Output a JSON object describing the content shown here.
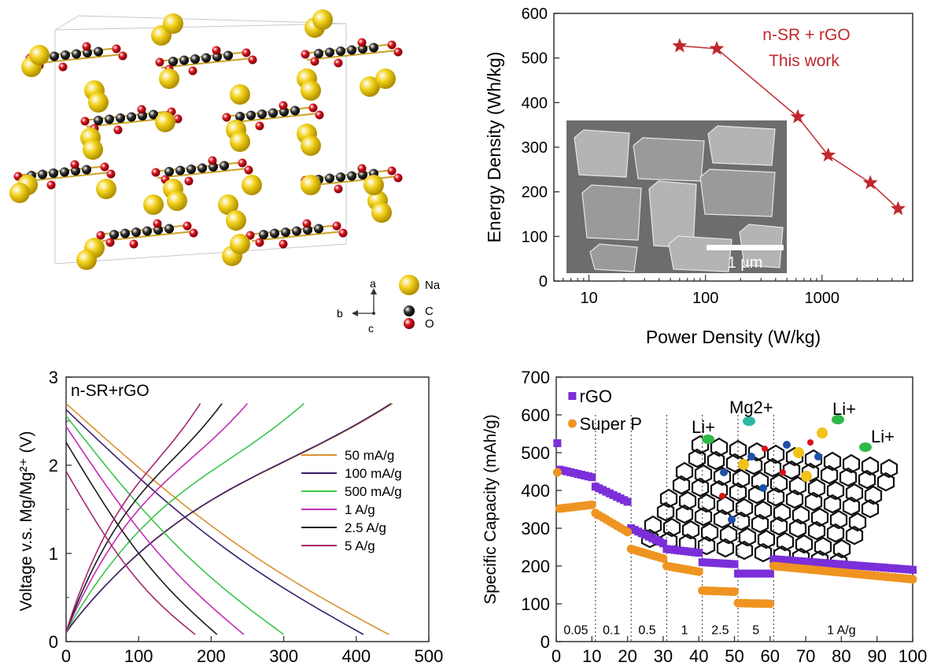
{
  "crystal": {
    "axes": {
      "a": "a",
      "b": "b",
      "c": "c"
    },
    "legend": [
      {
        "label": "Na",
        "color": "#f2d21b"
      },
      {
        "label": "C",
        "color": "#333333"
      },
      {
        "label": "O",
        "color": "#d9121a"
      }
    ]
  },
  "inset_sem": {
    "scale_label": "1 µm"
  },
  "mg_scheme": {
    "ions": [
      "Mg2+",
      "Li+",
      "Li+",
      "Li+"
    ]
  },
  "chart_data": [
    {
      "type": "scatter",
      "xlabel": "Power Density (W/kg)",
      "ylabel": "Energy Density (Wh/kg)",
      "xscale": "log",
      "xlim": [
        5,
        6000
      ],
      "ylim": [
        0,
        600
      ],
      "xticks": [
        10,
        100,
        1000
      ],
      "yticks": [
        0,
        100,
        200,
        300,
        400,
        500,
        600
      ],
      "annotation": [
        "n-SR + rGO",
        "This work"
      ],
      "series": [
        {
          "name": "n-SR + rGO",
          "color": "#c1272d",
          "marker": "star",
          "x": [
            60,
            125,
            620,
            1130,
            2600,
            4500
          ],
          "y": [
            527,
            521,
            368,
            282,
            220,
            162
          ]
        }
      ]
    },
    {
      "type": "line",
      "label": "n-SR+rGO",
      "xlabel": "",
      "ylabel": "Voltage v.s. Mg/Mg²⁺ (V)",
      "xlim": [
        0,
        500
      ],
      "ylim": [
        0,
        3
      ],
      "xticks": [
        0,
        100,
        200,
        300,
        400,
        500
      ],
      "yticks": [
        0,
        1,
        2,
        3
      ],
      "legend_position": "right",
      "series": [
        {
          "name": "50 mA/g",
          "color": "#d89030",
          "charge_end": 450,
          "discharge_end": 445,
          "start_v": 2.62
        },
        {
          "name": "100 mA/g",
          "color": "#3b1e6e",
          "charge_end": 448,
          "discharge_end": 410,
          "start_v": 2.55
        },
        {
          "name": "500 mA/g",
          "color": "#39c64a",
          "charge_end": 328,
          "discharge_end": 300,
          "start_v": 2.48
        },
        {
          "name": "1 A/g",
          "color": "#c42bb5",
          "charge_end": 250,
          "discharge_end": 245,
          "start_v": 2.36
        },
        {
          "name": "2.5 A/g",
          "color": "#1a1a1a",
          "charge_end": 215,
          "discharge_end": 208,
          "start_v": 2.18
        },
        {
          "name": "5 A/g",
          "color": "#a3286d",
          "charge_end": 185,
          "discharge_end": 178,
          "start_v": 1.85
        }
      ]
    },
    {
      "type": "scatter",
      "xlabel": "",
      "ylabel": "Specific Capacity (mAh/g)",
      "xlim": [
        0,
        100
      ],
      "ylim": [
        0,
        700
      ],
      "xticks": [
        0,
        10,
        20,
        30,
        40,
        50,
        60,
        70,
        80,
        90,
        100
      ],
      "yticks": [
        0,
        100,
        200,
        300,
        400,
        500,
        600,
        700
      ],
      "legend_position": "top-left",
      "rate_labels": [
        "0.05",
        "0.1",
        "0.5",
        "1",
        "2.5",
        "5",
        "1 A/g"
      ],
      "rate_boundaries": [
        11,
        21,
        31,
        41,
        51,
        61
      ],
      "series": [
        {
          "name": "rGO",
          "color": "#7b2fd8",
          "marker": "square",
          "segments": [
            [
              1,
              10,
              455,
              435
            ],
            [
              11,
              20,
              410,
              370
            ],
            [
              21,
              30,
              300,
              260
            ],
            [
              31,
              40,
              245,
              235
            ],
            [
              41,
              50,
              210,
              205
            ],
            [
              51,
              60,
              180,
              180
            ],
            [
              61,
              100,
              218,
              190
            ]
          ],
          "first": 525
        },
        {
          "name": "Super P",
          "color": "#ef9421",
          "marker": "circle",
          "segments": [
            [
              1,
              10,
              352,
              362
            ],
            [
              11,
              20,
              340,
              290
            ],
            [
              21,
              30,
              245,
              220
            ],
            [
              31,
              40,
              200,
              185
            ],
            [
              41,
              50,
              135,
              132
            ],
            [
              51,
              60,
              102,
              100
            ],
            [
              61,
              100,
              200,
              165
            ]
          ],
          "first": 448
        }
      ]
    }
  ]
}
